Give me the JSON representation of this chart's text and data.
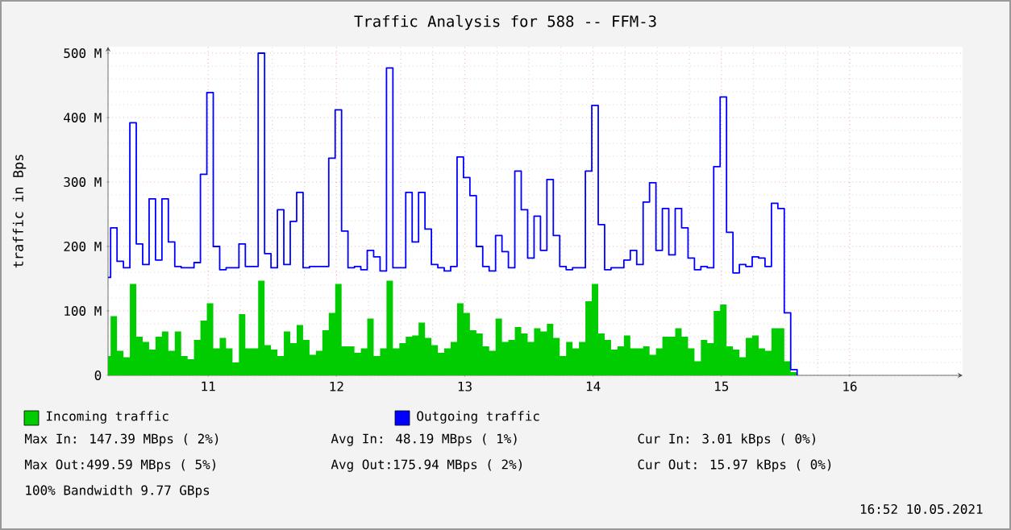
{
  "chart_data": {
    "type": "step",
    "title": "Traffic Analysis for 588 -- FFM-3",
    "ylabel": "traffic in Bps",
    "x": [
      10.22,
      10.24,
      10.29,
      10.34,
      10.39,
      10.44,
      10.49,
      10.54,
      10.59,
      10.64,
      10.69,
      10.74,
      10.79,
      10.84,
      10.89,
      10.94,
      10.99,
      11.04,
      11.09,
      11.14,
      11.19,
      11.24,
      11.29,
      11.34,
      11.39,
      11.44,
      11.49,
      11.54,
      11.59,
      11.64,
      11.69,
      11.74,
      11.79,
      11.84,
      11.89,
      11.94,
      11.99,
      12.04,
      12.09,
      12.14,
      12.19,
      12.24,
      12.29,
      12.34,
      12.39,
      12.44,
      12.49,
      12.54,
      12.59,
      12.64,
      12.69,
      12.74,
      12.79,
      12.84,
      12.89,
      12.94,
      12.99,
      13.04,
      13.09,
      13.14,
      13.19,
      13.24,
      13.29,
      13.34,
      13.39,
      13.44,
      13.49,
      13.54,
      13.59,
      13.64,
      13.69,
      13.74,
      13.79,
      13.84,
      13.89,
      13.94,
      13.99,
      14.04,
      14.09,
      14.14,
      14.19,
      14.24,
      14.29,
      14.34,
      14.39,
      14.44,
      14.49,
      14.54,
      14.59,
      14.64,
      14.69,
      14.74,
      14.79,
      14.84,
      14.89,
      14.94,
      14.99,
      15.04,
      15.09,
      15.14,
      15.19,
      15.24,
      15.29,
      15.34,
      15.39,
      15.44,
      15.49,
      15.54,
      15.59
    ],
    "series": [
      {
        "name": "Incoming traffic",
        "type": "area",
        "color": "#00cc00",
        "values": [
          30,
          92,
          38,
          28,
          142,
          60,
          52,
          40,
          60,
          68,
          38,
          68,
          30,
          25,
          55,
          85,
          112,
          42,
          58,
          42,
          20,
          95,
          42,
          42,
          147,
          47,
          40,
          30,
          68,
          50,
          78,
          55,
          32,
          38,
          70,
          97,
          142,
          45,
          45,
          35,
          42,
          88,
          30,
          42,
          147,
          42,
          50,
          60,
          62,
          82,
          58,
          47,
          35,
          42,
          52,
          112,
          97,
          70,
          65,
          45,
          38,
          88,
          52,
          55,
          75,
          65,
          52,
          73,
          68,
          80,
          58,
          30,
          52,
          42,
          52,
          115,
          142,
          65,
          55,
          40,
          45,
          62,
          42,
          42,
          45,
          32,
          42,
          60,
          60,
          73,
          60,
          42,
          22,
          55,
          50,
          100,
          110,
          45,
          40,
          28,
          58,
          62,
          42,
          38,
          73,
          73,
          22,
          5,
          0
        ]
      },
      {
        "name": "Outgoing traffic",
        "color": "#0000ff",
        "values": [
          152,
          229,
          177,
          167,
          392,
          204,
          172,
          274,
          179,
          274,
          207,
          169,
          167,
          167,
          175,
          312,
          439,
          200,
          164,
          167,
          167,
          204,
          169,
          169,
          500,
          189,
          167,
          257,
          172,
          239,
          284,
          167,
          169,
          169,
          169,
          337,
          412,
          224,
          167,
          169,
          164,
          194,
          184,
          162,
          477,
          167,
          167,
          284,
          207,
          284,
          227,
          172,
          167,
          162,
          169,
          339,
          307,
          279,
          200,
          169,
          162,
          217,
          192,
          167,
          317,
          257,
          182,
          247,
          194,
          304,
          217,
          169,
          164,
          167,
          167,
          317,
          419,
          234,
          164,
          167,
          167,
          179,
          194,
          172,
          269,
          299,
          194,
          259,
          187,
          259,
          229,
          182,
          164,
          169,
          167,
          324,
          432,
          222,
          159,
          172,
          169,
          184,
          182,
          169,
          267,
          259,
          97,
          9,
          0
        ]
      }
    ],
    "xlim": [
      10.22,
      16.88
    ],
    "xticks": [
      11,
      12,
      13,
      14,
      15,
      16
    ],
    "ylim": [
      0,
      510
    ],
    "yticks": [
      0,
      {
        "value": 100,
        "label": "100 M"
      },
      {
        "value": 200,
        "label": "200 M"
      },
      {
        "value": 300,
        "label": "300 M"
      },
      {
        "value": 400,
        "label": "400 M"
      },
      {
        "value": 500,
        "label": "500 M"
      }
    ],
    "grid": true,
    "legend": "bottom",
    "annotations": [
      "Max In: 147.39 MBps ( 2%)",
      "Avg In: 48.19 MBps ( 1%)",
      "Cur In: 3.01 kBps ( 0%)",
      "Max Out:499.59 MBps ( 5%)",
      "Avg Out:175.94 MBps ( 2%)",
      "Cur Out: 15.97 kBps ( 0%)",
      "100% Bandwidth 9.77 GBps",
      "16:52 10.05.2021"
    ]
  }
}
